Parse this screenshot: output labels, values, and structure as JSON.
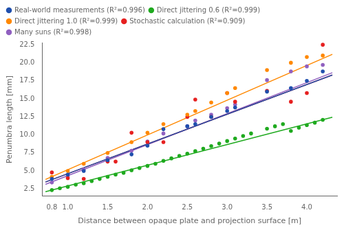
{
  "chart_data": {
    "type": "scatter",
    "x_label": "Distance between opaque plate and projection surface [m]",
    "y_label": "Penumbra length [mm]",
    "xlim": [
      0.68,
      4.38
    ],
    "ylim": [
      1.5,
      22.8
    ],
    "xticks": [
      0.8,
      {
        "value": 1.0,
        "label": "1.0"
      },
      1.5,
      {
        "value": 2.0,
        "label": "2.0"
      },
      2.5,
      {
        "value": 3.0,
        "label": "3.0"
      },
      3.5,
      {
        "value": 4.0,
        "label": "4.0"
      }
    ],
    "yticks": [
      2.5,
      {
        "value": 5.0,
        "label": "5.0"
      },
      7.5,
      {
        "value": 10.0,
        "label": "10.0"
      },
      12.5,
      {
        "value": 15.0,
        "label": "15.0"
      },
      17.5,
      {
        "value": 20.0,
        "label": "20.0"
      },
      22.5
    ],
    "grid": false,
    "legend": "upper left",
    "series": [
      {
        "name": "Real-world measurements (R²=0.996)",
        "color": "#1f4fad",
        "x": [
          0.8,
          1.0,
          1.2,
          1.5,
          1.8,
          2.0,
          2.2,
          2.5,
          2.6,
          2.8,
          3.0,
          3.1,
          3.5,
          3.8,
          4.0,
          4.2
        ],
        "values": [
          3.9,
          4.5,
          5.0,
          6.5,
          7.3,
          8.5,
          10.8,
          11.2,
          11.5,
          12.5,
          13.3,
          13.8,
          16.0,
          16.5,
          17.5,
          18.8
        ],
        "fit_line": {
          "x": [
            0.72,
            4.32
          ],
          "values": [
            3.4664,
            18.2984
          ]
        }
      },
      {
        "name": "Direct jittering 0.6 (R²=0.999)",
        "color": "#1faa1f",
        "x": [
          0.8,
          0.9,
          1.0,
          1.1,
          1.2,
          1.3,
          1.4,
          1.5,
          1.6,
          1.7,
          1.8,
          1.9,
          2.0,
          2.1,
          2.2,
          2.3,
          2.4,
          2.5,
          2.6,
          2.7,
          2.8,
          2.9,
          3.0,
          3.1,
          3.2,
          3.3,
          3.5,
          3.6,
          3.7,
          3.8,
          3.9,
          4.0,
          4.1,
          4.2
        ],
        "values": [
          2.35,
          2.6,
          2.8,
          3.1,
          3.3,
          3.6,
          3.9,
          4.2,
          4.5,
          4.75,
          5.1,
          5.4,
          5.7,
          6.0,
          6.4,
          6.75,
          7.1,
          7.4,
          7.75,
          8.1,
          8.45,
          8.8,
          9.15,
          9.5,
          9.85,
          10.2,
          10.85,
          11.2,
          11.5,
          10.55,
          11.0,
          11.35,
          11.7,
          12.1
        ],
        "fit_line": {
          "x": [
            0.72,
            4.32
          ],
          "values": [
            2.1164,
            12.4484
          ]
        }
      },
      {
        "name": "Direct jittering 1.0 (R²=0.999)",
        "color": "#ff8800",
        "x": [
          0.8,
          1.0,
          1.2,
          1.5,
          1.8,
          2.0,
          2.2,
          2.5,
          2.6,
          2.8,
          3.0,
          3.1,
          3.5,
          3.8,
          4.0,
          4.2
        ],
        "values": [
          4.2,
          5.0,
          6.0,
          7.5,
          9.0,
          10.3,
          11.5,
          12.8,
          13.3,
          14.5,
          15.8,
          16.5,
          19.0,
          20.0,
          20.8,
          21.0
        ],
        "fit_line": {
          "x": [
            0.72,
            4.32
          ],
          "values": [
            3.8204,
            21.1724
          ]
        }
      },
      {
        "name": "Stochastic calculation (R²=0.909)",
        "color": "#e62020",
        "x": [
          0.8,
          1.0,
          1.2,
          1.5,
          1.6,
          1.8,
          2.0,
          2.2,
          2.5,
          2.6,
          2.8,
          3.0,
          3.1,
          3.5,
          3.8,
          4.0,
          4.2
        ],
        "values": [
          4.8,
          4.0,
          3.9,
          6.3,
          6.3,
          10.3,
          9.0,
          9.0,
          12.5,
          14.9,
          12.5,
          15.8,
          14.6,
          16.1,
          14.6,
          15.8,
          22.5
        ],
        "fit_line": {
          "x": [
            0.72,
            4.32
          ],
          "values": [
            3.4664,
            18.2984
          ]
        }
      },
      {
        "name": "Many suns (R²=0.998)",
        "color": "#9060c0",
        "x": [
          0.8,
          1.0,
          1.2,
          1.5,
          1.8,
          2.0,
          2.2,
          2.5,
          2.6,
          2.8,
          3.0,
          3.1,
          3.5,
          3.8,
          4.0,
          4.2
        ],
        "values": [
          3.4,
          4.2,
          5.2,
          6.8,
          7.8,
          9.1,
          10.2,
          11.2,
          12.0,
          12.8,
          13.7,
          14.2,
          17.6,
          18.8,
          19.5,
          19.7
        ],
        "fit_line": {
          "x": [
            0.72,
            4.32
          ],
          "values": [
            3.146,
            18.626
          ]
        }
      }
    ]
  }
}
